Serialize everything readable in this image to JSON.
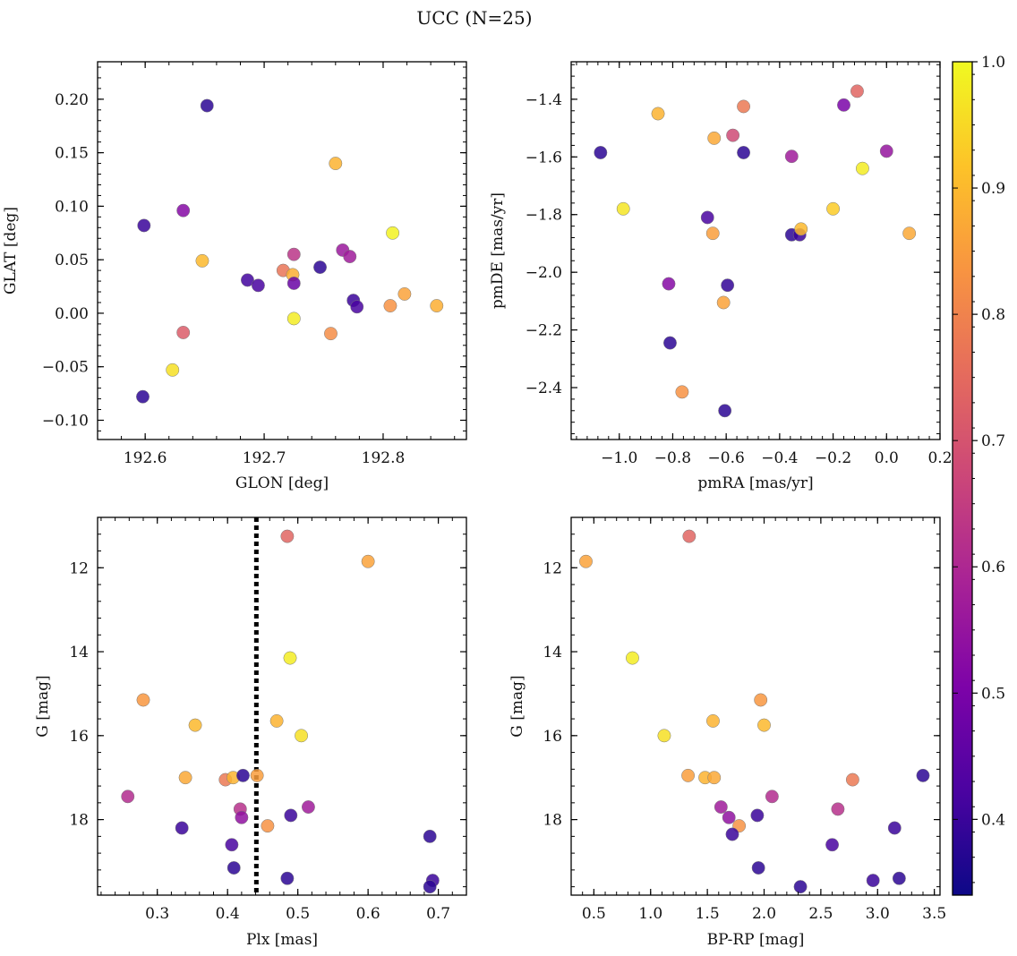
{
  "figure": {
    "title": "UCC (N=25)"
  },
  "colorbar": {
    "range": [
      0.34,
      1.0
    ],
    "ticks": [
      "1.0",
      "0.9",
      "0.8",
      "0.7",
      "0.6",
      "0.5",
      "0.4"
    ],
    "colormap": "plasma"
  },
  "chart_data": [
    {
      "type": "scatter",
      "panel": "top-left",
      "xlabel": "GLON [deg]",
      "ylabel": "GLAT [deg]",
      "xlim": [
        192.56,
        192.87
      ],
      "ylim": [
        -0.118,
        0.235
      ],
      "xticks": [
        "192.6",
        "192.7",
        "192.8"
      ],
      "yticks": [
        "0.20",
        "0.15",
        "0.10",
        "0.05",
        "0.00",
        "−0.05",
        "−0.10"
      ],
      "points": [
        {
          "x": 192.652,
          "y": 0.194,
          "c": 0.38
        },
        {
          "x": 192.599,
          "y": 0.082,
          "c": 0.4
        },
        {
          "x": 192.632,
          "y": 0.096,
          "c": 0.52
        },
        {
          "x": 192.648,
          "y": 0.049,
          "c": 0.9
        },
        {
          "x": 192.632,
          "y": -0.018,
          "c": 0.72
        },
        {
          "x": 192.623,
          "y": -0.053,
          "c": 0.96
        },
        {
          "x": 192.598,
          "y": -0.078,
          "c": 0.38
        },
        {
          "x": 192.686,
          "y": 0.031,
          "c": 0.41
        },
        {
          "x": 192.695,
          "y": 0.026,
          "c": 0.42
        },
        {
          "x": 192.716,
          "y": 0.04,
          "c": 0.77
        },
        {
          "x": 192.724,
          "y": 0.036,
          "c": 0.88
        },
        {
          "x": 192.725,
          "y": 0.028,
          "c": 0.47
        },
        {
          "x": 192.725,
          "y": 0.055,
          "c": 0.63
        },
        {
          "x": 192.725,
          "y": -0.005,
          "c": 0.98
        },
        {
          "x": 192.747,
          "y": 0.043,
          "c": 0.38
        },
        {
          "x": 192.76,
          "y": 0.14,
          "c": 0.89
        },
        {
          "x": 192.766,
          "y": 0.059,
          "c": 0.56
        },
        {
          "x": 192.772,
          "y": 0.053,
          "c": 0.57
        },
        {
          "x": 192.775,
          "y": 0.012,
          "c": 0.4
        },
        {
          "x": 192.778,
          "y": 0.006,
          "c": 0.42
        },
        {
          "x": 192.756,
          "y": -0.019,
          "c": 0.82
        },
        {
          "x": 192.808,
          "y": 0.075,
          "c": 0.99
        },
        {
          "x": 192.806,
          "y": 0.007,
          "c": 0.83
        },
        {
          "x": 192.818,
          "y": 0.018,
          "c": 0.86
        },
        {
          "x": 192.845,
          "y": 0.007,
          "c": 0.88
        }
      ]
    },
    {
      "type": "scatter",
      "panel": "top-right",
      "xlabel": "pmRA [mas/yr]",
      "ylabel": "pmDE [mas/yr]",
      "xlim": [
        -1.18,
        0.2
      ],
      "ylim": [
        -2.58,
        -1.27
      ],
      "xticks": [
        "−1.0",
        "−0.8",
        "−0.6",
        "−0.4",
        "−0.2",
        "0.0",
        "0.2"
      ],
      "yticks": [
        "−1.4",
        "−1.6",
        "−1.8",
        "−2.0",
        "−2.2",
        "−2.4"
      ],
      "points": [
        {
          "x": -1.07,
          "y": -1.585,
          "c": 0.38
        },
        {
          "x": -0.985,
          "y": -1.78,
          "c": 0.97
        },
        {
          "x": -0.855,
          "y": -1.45,
          "c": 0.89
        },
        {
          "x": -0.815,
          "y": -2.04,
          "c": 0.52
        },
        {
          "x": -0.81,
          "y": -2.245,
          "c": 0.38
        },
        {
          "x": -0.765,
          "y": -2.415,
          "c": 0.83
        },
        {
          "x": -0.67,
          "y": -1.81,
          "c": 0.42
        },
        {
          "x": -0.65,
          "y": -1.865,
          "c": 0.85
        },
        {
          "x": -0.645,
          "y": -1.535,
          "c": 0.87
        },
        {
          "x": -0.61,
          "y": -2.105,
          "c": 0.86
        },
        {
          "x": -0.605,
          "y": -2.48,
          "c": 0.38
        },
        {
          "x": -0.595,
          "y": -2.045,
          "c": 0.39
        },
        {
          "x": -0.575,
          "y": -1.525,
          "c": 0.68
        },
        {
          "x": -0.535,
          "y": -1.425,
          "c": 0.78
        },
        {
          "x": -0.535,
          "y": -1.585,
          "c": 0.38
        },
        {
          "x": -0.355,
          "y": -1.598,
          "c": 0.57
        },
        {
          "x": -0.355,
          "y": -1.87,
          "c": 0.38
        },
        {
          "x": -0.325,
          "y": -1.87,
          "c": 0.4
        },
        {
          "x": -0.32,
          "y": -1.85,
          "c": 0.9
        },
        {
          "x": -0.2,
          "y": -1.78,
          "c": 0.93
        },
        {
          "x": -0.16,
          "y": -1.42,
          "c": 0.5
        },
        {
          "x": -0.11,
          "y": -1.372,
          "c": 0.74
        },
        {
          "x": -0.09,
          "y": -1.64,
          "c": 0.98
        },
        {
          "x": 0.0,
          "y": -1.58,
          "c": 0.55
        },
        {
          "x": 0.085,
          "y": -1.865,
          "c": 0.87
        }
      ]
    },
    {
      "type": "scatter",
      "panel": "bottom-left",
      "xlabel": "Plx [mas]",
      "ylabel": "G [mag]",
      "xlim": [
        0.215,
        0.74
      ],
      "ylim": [
        19.8,
        10.8
      ],
      "y_inverted": true,
      "xticks": [
        "0.3",
        "0.4",
        "0.5",
        "0.6",
        "0.7"
      ],
      "yticks": [
        "12",
        "14",
        "16",
        "18"
      ],
      "vline": {
        "x": 0.441,
        "style": "dotted",
        "color": "#000000"
      },
      "points": [
        {
          "x": 0.485,
          "y": 11.25,
          "c": 0.74
        },
        {
          "x": 0.6,
          "y": 11.85,
          "c": 0.86
        },
        {
          "x": 0.489,
          "y": 14.15,
          "c": 0.98
        },
        {
          "x": 0.28,
          "y": 15.15,
          "c": 0.84
        },
        {
          "x": 0.354,
          "y": 15.75,
          "c": 0.9
        },
        {
          "x": 0.47,
          "y": 15.65,
          "c": 0.89
        },
        {
          "x": 0.505,
          "y": 16.0,
          "c": 0.96
        },
        {
          "x": 0.258,
          "y": 17.45,
          "c": 0.61
        },
        {
          "x": 0.34,
          "y": 17.0,
          "c": 0.87
        },
        {
          "x": 0.397,
          "y": 17.05,
          "c": 0.78
        },
        {
          "x": 0.408,
          "y": 17.0,
          "c": 0.89
        },
        {
          "x": 0.422,
          "y": 16.95,
          "c": 0.38
        },
        {
          "x": 0.442,
          "y": 16.95,
          "c": 0.85
        },
        {
          "x": 0.418,
          "y": 17.75,
          "c": 0.62
        },
        {
          "x": 0.42,
          "y": 17.95,
          "c": 0.54
        },
        {
          "x": 0.515,
          "y": 17.7,
          "c": 0.57
        },
        {
          "x": 0.335,
          "y": 18.2,
          "c": 0.4
        },
        {
          "x": 0.457,
          "y": 18.15,
          "c": 0.83
        },
        {
          "x": 0.49,
          "y": 17.9,
          "c": 0.4
        },
        {
          "x": 0.406,
          "y": 18.6,
          "c": 0.42
        },
        {
          "x": 0.409,
          "y": 19.15,
          "c": 0.38
        },
        {
          "x": 0.485,
          "y": 19.4,
          "c": 0.38
        },
        {
          "x": 0.688,
          "y": 18.4,
          "c": 0.38
        },
        {
          "x": 0.692,
          "y": 19.45,
          "c": 0.4
        },
        {
          "x": 0.688,
          "y": 19.6,
          "c": 0.38
        }
      ]
    },
    {
      "type": "scatter",
      "panel": "bottom-right",
      "xlabel": "BP-RP [mag]",
      "ylabel": "G [mag]",
      "xlim": [
        0.3,
        3.55
      ],
      "ylim": [
        19.8,
        10.8
      ],
      "y_inverted": true,
      "xticks": [
        "0.5",
        "1.0",
        "1.5",
        "2.0",
        "2.5",
        "3.0",
        "3.5"
      ],
      "yticks": [
        "12",
        "14",
        "16",
        "18"
      ],
      "points": [
        {
          "x": 0.43,
          "y": 11.85,
          "c": 0.86
        },
        {
          "x": 1.34,
          "y": 11.25,
          "c": 0.74
        },
        {
          "x": 0.84,
          "y": 14.15,
          "c": 0.98
        },
        {
          "x": 1.12,
          "y": 16.0,
          "c": 0.96
        },
        {
          "x": 1.55,
          "y": 15.65,
          "c": 0.89
        },
        {
          "x": 1.97,
          "y": 15.15,
          "c": 0.84
        },
        {
          "x": 2.0,
          "y": 15.75,
          "c": 0.9
        },
        {
          "x": 1.33,
          "y": 16.95,
          "c": 0.85
        },
        {
          "x": 1.48,
          "y": 17.0,
          "c": 0.89
        },
        {
          "x": 1.56,
          "y": 17.0,
          "c": 0.87
        },
        {
          "x": 2.78,
          "y": 17.05,
          "c": 0.78
        },
        {
          "x": 3.4,
          "y": 16.95,
          "c": 0.38
        },
        {
          "x": 2.07,
          "y": 17.45,
          "c": 0.61
        },
        {
          "x": 1.62,
          "y": 17.7,
          "c": 0.57
        },
        {
          "x": 1.69,
          "y": 17.95,
          "c": 0.54
        },
        {
          "x": 1.78,
          "y": 18.15,
          "c": 0.83
        },
        {
          "x": 1.72,
          "y": 18.35,
          "c": 0.4
        },
        {
          "x": 1.94,
          "y": 17.9,
          "c": 0.4
        },
        {
          "x": 2.65,
          "y": 17.75,
          "c": 0.62
        },
        {
          "x": 3.15,
          "y": 18.2,
          "c": 0.4
        },
        {
          "x": 2.6,
          "y": 18.6,
          "c": 0.42
        },
        {
          "x": 1.95,
          "y": 19.15,
          "c": 0.38
        },
        {
          "x": 2.96,
          "y": 19.45,
          "c": 0.4
        },
        {
          "x": 3.19,
          "y": 19.4,
          "c": 0.38
        },
        {
          "x": 2.32,
          "y": 19.6,
          "c": 0.38
        }
      ]
    }
  ]
}
